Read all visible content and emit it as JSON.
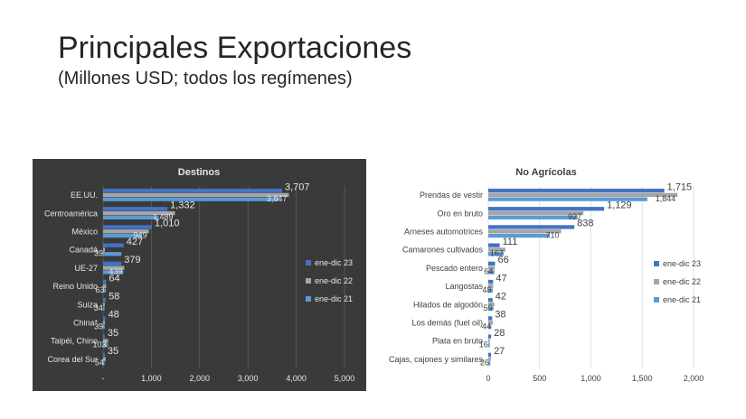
{
  "slide": {
    "title": "Principales Exportaciones",
    "subtitle": "(Millones USD; todos los regímenes)"
  },
  "colors": {
    "ene-dic 23": "#4472c4",
    "ene-dic 22": "#a5a5a5",
    "ene-dic 21": "#5b9bd5",
    "dark_bg": "#3a3a3a"
  },
  "chart_data": [
    {
      "type": "bar",
      "orientation": "horizontal",
      "title": "Destinos",
      "categories": [
        "Corea del Sur",
        "Taipéi, Chino",
        "China*",
        "Suiza",
        "Reino Unido",
        "UE-27",
        "Canadá",
        "México",
        "Centroamérica",
        "EE.UU."
      ],
      "series": [
        {
          "name": "ene-dic 23",
          "values": [
            35,
            35,
            48,
            58,
            64,
            379,
            427,
            1010,
            1332,
            3707
          ]
        },
        {
          "name": "ene-dic 22",
          "values": [
            54,
            103,
            39,
            34,
            63,
            439,
            39,
            949,
            1489,
            3847
          ]
        },
        {
          "name": "ene-dic 21",
          "values": [
            30,
            100,
            35,
            30,
            60,
            420,
            380,
            800,
            1150,
            3650
          ]
        }
      ],
      "data_labels": {
        "ene-dic 23": [
          "35",
          "35",
          "48",
          "58",
          "64",
          "379",
          "427",
          "1,010",
          "1,332",
          "3,707"
        ],
        "ene-dic 22": [
          "54",
          "103",
          "39",
          "34",
          "63",
          "439",
          "39",
          "949",
          "1,489",
          "3,847"
        ]
      },
      "xlim": [
        0,
        5000
      ],
      "xticks": [
        "-",
        "1,000",
        "2,000",
        "3,000",
        "4,000",
        "5,000"
      ],
      "xtick_values": [
        0,
        1000,
        2000,
        3000,
        4000,
        5000
      ],
      "legend": [
        "ene-dic 23",
        "ene-dic 22",
        "ene-dic 21"
      ],
      "legend_position": "right",
      "grid": true
    },
    {
      "type": "bar",
      "orientation": "horizontal",
      "title": "No Agrícolas",
      "categories": [
        "Cajas, cajones y similares",
        "Plata en bruto",
        "Los demás (fuel oil)",
        "Hilados de algodón",
        "Langostas",
        "Pescado entero",
        "Camarones cultivados",
        "Arneses automotrices",
        "Oro en bruto",
        "Prendas de vestir"
      ],
      "series": [
        {
          "name": "ene-dic 23",
          "values": [
            27,
            28,
            38,
            42,
            47,
            66,
            111,
            838,
            1129,
            1715
          ]
        },
        {
          "name": "ene-dic 22",
          "values": [
            26,
            16,
            44,
            59,
            48,
            64,
            167,
            710,
            927,
            1844
          ]
        },
        {
          "name": "ene-dic 21",
          "values": [
            20,
            15,
            30,
            50,
            45,
            60,
            150,
            600,
            870,
            1550
          ]
        }
      ],
      "data_labels": {
        "ene-dic 23": [
          "27",
          "28",
          "38",
          "42",
          "47",
          "66",
          "111",
          "838",
          "1,129",
          "1,715"
        ],
        "ene-dic 22": [
          "26",
          "16",
          "44",
          "59",
          "48",
          "64",
          "167",
          "710",
          "927",
          "1,844"
        ]
      },
      "xlim": [
        0,
        2000
      ],
      "xticks": [
        "0",
        "500",
        "1,000",
        "1,500",
        "2,000"
      ],
      "xtick_values": [
        0,
        500,
        1000,
        1500,
        2000
      ],
      "legend": [
        "ene-dic 23",
        "ene-dic 22",
        "ene-dic 21"
      ],
      "legend_position": "right",
      "grid": true
    }
  ]
}
